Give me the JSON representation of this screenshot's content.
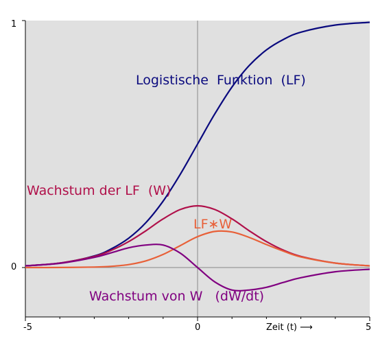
{
  "chart_data": {
    "type": "line",
    "xlim": [
      -5,
      5
    ],
    "ylim": [
      -0.2,
      1
    ],
    "grid": false,
    "background": "#e0e0e0",
    "axes_color": "#888888",
    "xlabel": "Zeit (t)",
    "xlabel_arrow": "⟶",
    "x_ticks": [
      {
        "value": -5,
        "label": "-5"
      },
      {
        "value": 0,
        "label": "0"
      },
      {
        "value": 5,
        "label": "5"
      }
    ],
    "y_ticks": [
      {
        "value": 0,
        "label": "0"
      },
      {
        "value": 1,
        "label": "1"
      }
    ],
    "series": [
      {
        "key": "lf",
        "label": "Logistische  Funktion  (LF)",
        "color": "#0a0a7e",
        "x": [
          -5,
          -4,
          -3,
          -2.5,
          -2,
          -1.5,
          -1,
          -0.5,
          0,
          0.5,
          1,
          1.5,
          2,
          2.5,
          3,
          4,
          5
        ],
        "y": [
          0.007,
          0.018,
          0.047,
          0.076,
          0.119,
          0.182,
          0.269,
          0.378,
          0.5,
          0.622,
          0.731,
          0.818,
          0.881,
          0.924,
          0.953,
          0.982,
          0.993
        ]
      },
      {
        "key": "w",
        "label": "Wachstum der LF  (W)",
        "color": "#b0104a",
        "x": [
          -5,
          -4,
          -3,
          -2.5,
          -2,
          -1.5,
          -1,
          -0.5,
          0,
          0.5,
          1,
          1.5,
          2,
          2.5,
          3,
          4,
          5
        ],
        "y": [
          0.007,
          0.018,
          0.045,
          0.07,
          0.105,
          0.149,
          0.197,
          0.235,
          0.25,
          0.235,
          0.197,
          0.149,
          0.105,
          0.07,
          0.045,
          0.018,
          0.007
        ]
      },
      {
        "key": "lfw",
        "label": "LF∗W",
        "color": "#e86038",
        "x": [
          -5,
          -4,
          -3,
          -2.5,
          -2,
          -1.5,
          -1,
          -0.5,
          0,
          0.5,
          1,
          1.5,
          2,
          2.5,
          3,
          4,
          5
        ],
        "y": [
          0.0,
          0.0003,
          0.002,
          0.005,
          0.012,
          0.027,
          0.053,
          0.089,
          0.125,
          0.146,
          0.144,
          0.122,
          0.093,
          0.066,
          0.043,
          0.018,
          0.007
        ]
      },
      {
        "key": "dw",
        "label": "Wachstum von W   (dW/dt)",
        "color": "#800080",
        "x": [
          -5,
          -4,
          -3,
          -2.5,
          -2,
          -1.5,
          -1,
          -0.5,
          0,
          0.5,
          1,
          1.5,
          2,
          2.5,
          3,
          4,
          5
        ],
        "y": [
          0.007,
          0.017,
          0.041,
          0.06,
          0.08,
          0.091,
          0.091,
          0.058,
          0.0,
          -0.058,
          -0.091,
          -0.091,
          -0.08,
          -0.06,
          -0.041,
          -0.017,
          -0.007
        ]
      }
    ]
  }
}
